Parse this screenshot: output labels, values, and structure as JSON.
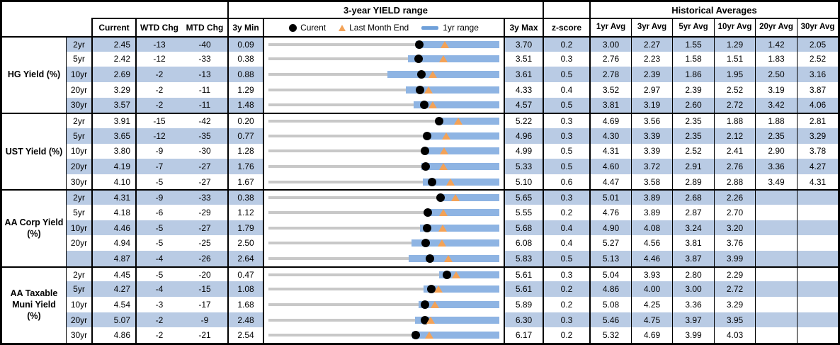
{
  "header": {
    "range_title": "3-year YIELD range",
    "historical_title": "Historical Averages",
    "columns": {
      "current": "Current",
      "wtd": "WTD Chg",
      "mtd": "MTD Chg",
      "min": "3y Min",
      "max": "3y Max",
      "z": "z-score"
    },
    "avg_columns": [
      "1yr Avg",
      "3yr Avg",
      "5yr Avg",
      "10yr Avg",
      "20yr Avg",
      "30yr Avg"
    ],
    "legend": {
      "current": "Curent",
      "last_month": "Last Month End",
      "range": "1yr range"
    }
  },
  "colors": {
    "band_blue": "#B9CBE4",
    "bar_blue": "#8EB4E3",
    "legend_bar_blue": "#6FA0D9",
    "track_gray": "#C8C8C8",
    "triangle_orange": "#F3A257",
    "dot_black": "#000000"
  },
  "chart_data": {
    "type": "table",
    "title": "3-year YIELD range",
    "legend_entries": [
      "Curent",
      "Last Month End",
      "1yr range"
    ],
    "notes": "Each row: bullet chart mapping [3y Min, 3y Max] to full width; black dot = Current, orange triangle = Last Month End, blue bar = 1yr range (1yr low/high estimated from pixels, high coincides with 3y Max).",
    "groups": [
      {
        "label": "HG Yield (%)",
        "rows": [
          {
            "tenor": "2yr",
            "current": "2.45",
            "wtd_chg": "-13",
            "mtd_chg": "-40",
            "min_3y": "0.09",
            "max_3y": "3.70",
            "z_score": "0.2",
            "last_month_end": 2.85,
            "range_1yr": [
              2.39,
              3.7
            ],
            "avgs": [
              "3.00",
              "2.27",
              "1.55",
              "1.29",
              "1.42",
              "2.05"
            ]
          },
          {
            "tenor": "5yr",
            "current": "2.42",
            "wtd_chg": "-12",
            "mtd_chg": "-33",
            "min_3y": "0.38",
            "max_3y": "3.51",
            "z_score": "0.3",
            "last_month_end": 2.75,
            "range_1yr": [
              2.27,
              3.51
            ],
            "avgs": [
              "2.76",
              "2.23",
              "1.58",
              "1.51",
              "1.83",
              "2.52"
            ]
          },
          {
            "tenor": "10yr",
            "current": "2.69",
            "wtd_chg": "-2",
            "mtd_chg": "-13",
            "min_3y": "0.88",
            "max_3y": "3.61",
            "z_score": "0.5",
            "last_month_end": 2.82,
            "range_1yr": [
              2.29,
              3.61
            ],
            "avgs": [
              "2.78",
              "2.39",
              "1.86",
              "1.95",
              "2.50",
              "3.16"
            ]
          },
          {
            "tenor": "20yr",
            "current": "3.29",
            "wtd_chg": "-2",
            "mtd_chg": "-11",
            "min_3y": "1.29",
            "max_3y": "4.33",
            "z_score": "0.4",
            "last_month_end": 3.4,
            "range_1yr": [
              3.1,
              4.33
            ],
            "avgs": [
              "3.52",
              "2.97",
              "2.39",
              "2.52",
              "3.19",
              "3.87"
            ]
          },
          {
            "tenor": "30yr",
            "current": "3.57",
            "wtd_chg": "-2",
            "mtd_chg": "-11",
            "min_3y": "1.48",
            "max_3y": "4.57",
            "z_score": "0.5",
            "last_month_end": 3.68,
            "range_1yr": [
              3.42,
              4.57
            ],
            "avgs": [
              "3.81",
              "3.19",
              "2.60",
              "2.72",
              "3.42",
              "4.06"
            ]
          }
        ]
      },
      {
        "label": "UST Yield (%)",
        "rows": [
          {
            "tenor": "2yr",
            "current": "3.91",
            "wtd_chg": "-15",
            "mtd_chg": "-42",
            "min_3y": "0.20",
            "max_3y": "5.22",
            "z_score": "0.3",
            "last_month_end": 4.33,
            "range_1yr": [
              3.85,
              5.22
            ],
            "avgs": [
              "4.69",
              "3.56",
              "2.35",
              "1.88",
              "1.88",
              "2.81"
            ]
          },
          {
            "tenor": "5yr",
            "current": "3.65",
            "wtd_chg": "-12",
            "mtd_chg": "-35",
            "min_3y": "0.77",
            "max_3y": "4.96",
            "z_score": "0.3",
            "last_month_end": 4.0,
            "range_1yr": [
              3.63,
              4.96
            ],
            "avgs": [
              "4.30",
              "3.39",
              "2.35",
              "2.12",
              "2.35",
              "3.29"
            ]
          },
          {
            "tenor": "10yr",
            "current": "3.80",
            "wtd_chg": "-9",
            "mtd_chg": "-30",
            "min_3y": "1.28",
            "max_3y": "4.99",
            "z_score": "0.5",
            "last_month_end": 4.1,
            "range_1yr": [
              3.78,
              4.99
            ],
            "avgs": [
              "4.31",
              "3.39",
              "2.52",
              "2.41",
              "2.90",
              "3.78"
            ]
          },
          {
            "tenor": "20yr",
            "current": "4.19",
            "wtd_chg": "-7",
            "mtd_chg": "-27",
            "min_3y": "1.76",
            "max_3y": "5.33",
            "z_score": "0.5",
            "last_month_end": 4.46,
            "range_1yr": [
              4.12,
              5.33
            ],
            "avgs": [
              "4.60",
              "3.72",
              "2.91",
              "2.76",
              "3.36",
              "4.27"
            ]
          },
          {
            "tenor": "30yr",
            "current": "4.10",
            "wtd_chg": "-5",
            "mtd_chg": "-27",
            "min_3y": "1.67",
            "max_3y": "5.10",
            "z_score": "0.6",
            "last_month_end": 4.37,
            "range_1yr": [
              3.96,
              5.1
            ],
            "avgs": [
              "4.47",
              "3.58",
              "2.89",
              "2.88",
              "3.49",
              "4.31"
            ]
          }
        ]
      },
      {
        "label": "AA Corp Yield (%)",
        "rows": [
          {
            "tenor": "2yr",
            "current": "4.31",
            "wtd_chg": "-9",
            "mtd_chg": "-33",
            "min_3y": "0.38",
            "max_3y": "5.65",
            "z_score": "0.3",
            "last_month_end": 4.64,
            "range_1yr": [
              4.24,
              5.65
            ],
            "avgs": [
              "5.01",
              "3.89",
              "2.68",
              "2.26",
              null,
              null
            ]
          },
          {
            "tenor": "5yr",
            "current": "4.18",
            "wtd_chg": "-6",
            "mtd_chg": "-29",
            "min_3y": "1.12",
            "max_3y": "5.55",
            "z_score": "0.2",
            "last_month_end": 4.47,
            "range_1yr": [
              4.12,
              5.55
            ],
            "avgs": [
              "4.76",
              "3.89",
              "2.87",
              "2.70",
              null,
              null
            ]
          },
          {
            "tenor": "10yr",
            "current": "4.46",
            "wtd_chg": "-5",
            "mtd_chg": "-27",
            "min_3y": "1.79",
            "max_3y": "5.68",
            "z_score": "0.4",
            "last_month_end": 4.73,
            "range_1yr": [
              4.34,
              5.68
            ],
            "avgs": [
              "4.90",
              "4.08",
              "3.24",
              "3.20",
              null,
              null
            ]
          },
          {
            "tenor": "20yr",
            "current": "4.94",
            "wtd_chg": "-5",
            "mtd_chg": "-25",
            "min_3y": "2.50",
            "max_3y": "6.08",
            "z_score": "0.4",
            "last_month_end": 5.19,
            "range_1yr": [
              4.72,
              6.08
            ],
            "avgs": [
              "5.27",
              "4.56",
              "3.81",
              "3.76",
              null,
              null
            ]
          },
          {
            "tenor": "",
            "current": "4.87",
            "wtd_chg": "-4",
            "mtd_chg": "-26",
            "min_3y": "2.64",
            "max_3y": "5.83",
            "z_score": "0.5",
            "last_month_end": 5.13,
            "range_1yr": [
              4.58,
              5.83
            ],
            "avgs": [
              "5.13",
              "4.46",
              "3.87",
              "3.99",
              null,
              null
            ]
          }
        ]
      },
      {
        "label": "AA Taxable Muni Yield (%)",
        "rows": [
          {
            "tenor": "2yr",
            "current": "4.45",
            "wtd_chg": "-5",
            "mtd_chg": "-20",
            "min_3y": "0.47",
            "max_3y": "5.61",
            "z_score": "0.3",
            "last_month_end": 4.65,
            "range_1yr": [
              4.27,
              5.61
            ],
            "avgs": [
              "5.04",
              "3.93",
              "2.80",
              "2.29",
              null,
              null
            ]
          },
          {
            "tenor": "5yr",
            "current": "4.27",
            "wtd_chg": "-4",
            "mtd_chg": "-15",
            "min_3y": "1.08",
            "max_3y": "5.61",
            "z_score": "0.2",
            "last_month_end": 4.42,
            "range_1yr": [
              4.13,
              5.61
            ],
            "avgs": [
              "4.86",
              "4.00",
              "3.00",
              "2.72",
              null,
              null
            ]
          },
          {
            "tenor": "10yr",
            "current": "4.54",
            "wtd_chg": "-3",
            "mtd_chg": "-17",
            "min_3y": "1.68",
            "max_3y": "5.89",
            "z_score": "0.2",
            "last_month_end": 4.71,
            "range_1yr": [
              4.42,
              5.89
            ],
            "avgs": [
              "5.08",
              "4.25",
              "3.36",
              "3.29",
              null,
              null
            ]
          },
          {
            "tenor": "20yr",
            "current": "5.07",
            "wtd_chg": "-2",
            "mtd_chg": "-9",
            "min_3y": "2.48",
            "max_3y": "6.30",
            "z_score": "0.3",
            "last_month_end": 5.16,
            "range_1yr": [
              4.91,
              6.3
            ],
            "avgs": [
              "5.46",
              "4.75",
              "3.97",
              "3.95",
              null,
              null
            ]
          },
          {
            "tenor": "30yr",
            "current": "4.86",
            "wtd_chg": "-2",
            "mtd_chg": "-21",
            "min_3y": "2.54",
            "max_3y": "6.17",
            "z_score": "0.2",
            "last_month_end": 5.07,
            "range_1yr": [
              4.8,
              6.17
            ],
            "avgs": [
              "5.32",
              "4.69",
              "3.99",
              "4.03",
              null,
              null
            ]
          }
        ]
      }
    ]
  }
}
